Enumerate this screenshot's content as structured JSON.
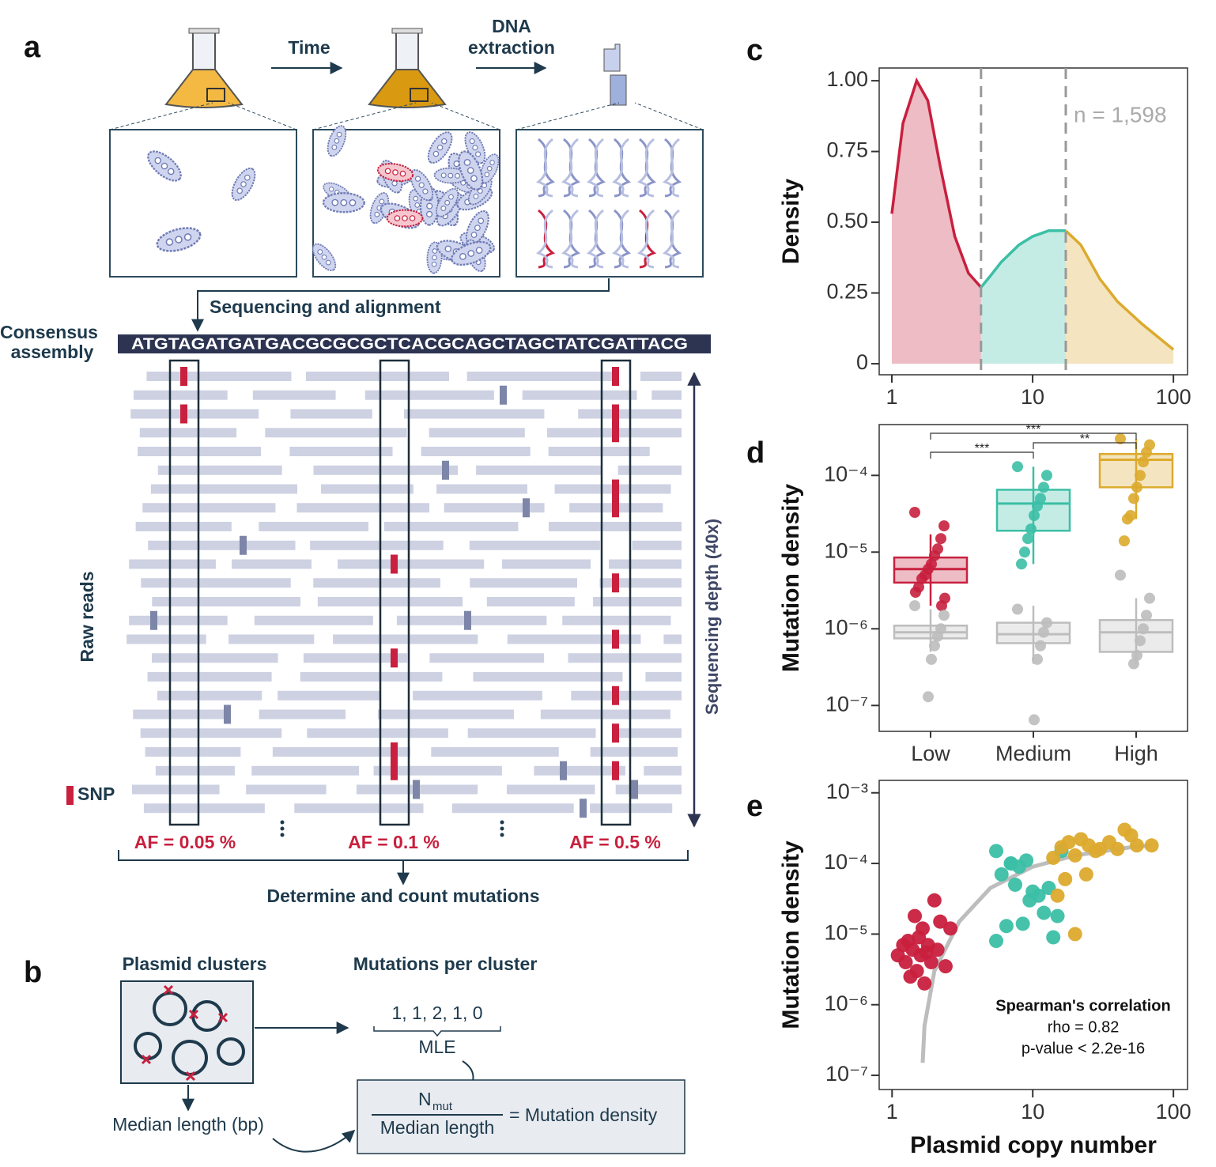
{
  "panel_labels": [
    "a",
    "b",
    "c",
    "d",
    "e"
  ],
  "diagram_a": {
    "step1": "Time",
    "step2": [
      "DNA",
      "extraction"
    ],
    "align": "Sequencing and alignment",
    "consensus_label": [
      "Consensus",
      "assembly"
    ],
    "sequence": "ATGTAGATGATGACGCGCGCTCACGCAGCTAGCTATCGATTACG",
    "raw_reads": "Raw reads",
    "depth": "Sequencing depth (40x)",
    "snp": "SNP",
    "af": [
      "AF = 0.05 %",
      "AF = 0.1 %",
      "AF = 0.5 %"
    ],
    "determine": "Determine and count mutations"
  },
  "diagram_b": {
    "clusters": "Plasmid clusters",
    "per_cluster": "Mutations per cluster",
    "counts": "1, 1, 2, 1, 0",
    "mle": "MLE",
    "numerator": "N",
    "numerator_sub": "mut",
    "denominator": "Median length",
    "result": "= Mutation density",
    "median": "Median length (bp)"
  },
  "chart_data": [
    {
      "type": "density",
      "ylabel": "Density",
      "annotation": "n = 1,598",
      "xscale": "log",
      "xlim": [
        0.813,
        126
      ],
      "ylim": [
        -0.039,
        1.045
      ],
      "xticks": [
        1,
        10,
        100
      ],
      "yticks": [
        0,
        0.25,
        {
          "value": 0.5,
          "label": "0.50"
        },
        0.75,
        {
          "value": 1,
          "label": "1.00"
        }
      ],
      "vlines": [
        4.3,
        17.2
      ],
      "series": [
        {
          "color": "#c8203e",
          "x": [
            1,
            1.2,
            1.5,
            1.8,
            2.2,
            2.8,
            3.5,
            4.3
          ],
          "values": [
            0.53,
            0.85,
            1.0,
            0.93,
            0.7,
            0.45,
            0.32,
            0.27
          ]
        },
        {
          "color": "#3cbfa6",
          "x": [
            4.3,
            5,
            6,
            8,
            10,
            13,
            17.2
          ],
          "values": [
            0.27,
            0.31,
            0.36,
            0.42,
            0.45,
            0.47,
            0.47
          ]
        },
        {
          "color": "#dcaa2e",
          "x": [
            17.2,
            22,
            30,
            40,
            60,
            100
          ],
          "values": [
            0.47,
            0.42,
            0.3,
            0.22,
            0.14,
            0.05
          ]
        }
      ]
    },
    {
      "type": "box",
      "ylabel": "Mutation density",
      "yscale": "log",
      "categories": [
        "Low",
        "Medium",
        "High"
      ],
      "ylim": [
        4.6e-08,
        0.00046
      ],
      "yticks": [
        {
          "value": 1e-07,
          "label": "10⁻⁷"
        },
        {
          "value": 1e-06,
          "label": "10⁻⁶"
        },
        {
          "value": 1e-05,
          "label": "10⁻⁵"
        },
        {
          "value": 0.0001,
          "label": "10⁻⁴"
        }
      ],
      "significance": [
        "***",
        "***",
        "**"
      ],
      "series": [
        {
          "colors": [
            "#c8203e",
            "#3cbfa6",
            "#dcaa2e"
          ],
          "boxes": [
            {
              "min": 2e-06,
              "q1": 4e-06,
              "median": 6e-06,
              "q3": 8.5e-06,
              "max": 1.7e-05,
              "points": [
                3.3e-05,
                2.2e-05,
                1.5e-05,
                1.1e-05,
                9e-06,
                7e-06,
                6e-06,
                5e-06,
                4.5e-06,
                3.5e-06,
                3e-06,
                2.5e-06,
                2e-06
              ]
            },
            {
              "min": 7e-06,
              "q1": 1.9e-05,
              "median": 4.3e-05,
              "q3": 6.5e-05,
              "max": 0.00013,
              "points": [
                0.00013,
                0.0001,
                7e-05,
                5e-05,
                4e-05,
                3e-05,
                2e-05,
                1.5e-05,
                1e-05,
                7e-06
              ]
            },
            {
              "min": 2.7e-05,
              "q1": 7e-05,
              "median": 0.00016,
              "q3": 0.00019,
              "max": 0.0003,
              "points": [
                0.0003,
                0.00025,
                0.0002,
                0.00015,
                0.0001,
                7e-05,
                5e-05,
                3e-05,
                2.7e-05,
                1.4e-05
              ]
            }
          ]
        },
        {
          "colors": [
            "#bdbdbd",
            "#bdbdbd",
            "#bdbdbd"
          ],
          "boxes": [
            {
              "min": 5e-07,
              "q1": 7.5e-07,
              "median": 9e-07,
              "q3": 1.1e-06,
              "max": 1.8e-06,
              "points": [
                2e-06,
                1.5e-06,
                1e-06,
                8e-07,
                6e-07,
                4e-07,
                1.3e-07
              ]
            },
            {
              "min": 3.5e-07,
              "q1": 6.5e-07,
              "median": 8.5e-07,
              "q3": 1.2e-06,
              "max": 2e-06,
              "points": [
                1.8e-06,
                1.2e-06,
                9e-07,
                6e-07,
                4e-07,
                6.5e-08
              ]
            },
            {
              "min": 3.5e-07,
              "q1": 5e-07,
              "median": 9e-07,
              "q3": 1.3e-06,
              "max": 2.5e-06,
              "points": [
                5e-06,
                2.5e-06,
                1.5e-06,
                1e-06,
                7e-07,
                4.5e-07,
                3.5e-07
              ]
            }
          ]
        }
      ]
    },
    {
      "type": "scatter",
      "xlabel": "Plasmid copy number",
      "ylabel": "Mutation density",
      "xscale": "log",
      "yscale": "log",
      "xlim": [
        0.81,
        126
      ],
      "ylim": [
        6.3e-08,
        0.0015
      ],
      "xticks": [
        1,
        10,
        100
      ],
      "yticks": [
        {
          "value": 1e-07,
          "label": "10⁻⁷"
        },
        {
          "value": 1e-06,
          "label": "10⁻⁶"
        },
        {
          "value": 1e-05,
          "label": "10⁻⁵"
        },
        {
          "value": 0.0001,
          "label": "10⁻⁴"
        },
        {
          "value": 0.001,
          "label": "10⁻³"
        }
      ],
      "annotation": [
        "Spearman's correlation",
        "rho = 0.82",
        "p-value < 2.2e-16"
      ],
      "fit": {
        "color": "#bdbdbd",
        "x": [
          1.65,
          1.7,
          2,
          3,
          5,
          10,
          20,
          50,
          70
        ],
        "values": [
          1.5e-07,
          5e-07,
          3e-06,
          1.5e-05,
          4.5e-05,
          9e-05,
          0.00013,
          0.00017,
          0.00018
        ]
      },
      "series": [
        {
          "color": "#c8203e",
          "x": [
            1.1,
            1.2,
            1.25,
            1.3,
            1.4,
            1.45,
            1.5,
            1.55,
            1.6,
            1.65,
            1.7,
            1.8,
            1.9,
            2.0,
            2.1,
            2.2,
            2.4,
            2.6,
            1.35,
            1.75
          ],
          "values": [
            5e-06,
            7e-06,
            4e-06,
            8e-06,
            6e-06,
            1.8e-05,
            3e-06,
            9e-06,
            5e-06,
            1.2e-05,
            2e-06,
            7e-06,
            4e-06,
            3e-05,
            6e-06,
            1.5e-05,
            3.5e-06,
            1.2e-05,
            2.5e-06,
            5.5e-06
          ]
        },
        {
          "color": "#3cbfa6",
          "x": [
            5.5,
            6,
            6.5,
            7,
            7.5,
            8,
            8.5,
            9,
            9.5,
            10,
            11,
            12,
            13,
            14,
            15,
            16,
            5.5,
            7
          ],
          "values": [
            0.00015,
            7e-05,
            1.3e-05,
            0.0001,
            5e-05,
            9e-05,
            1.4e-05,
            0.00011,
            3e-05,
            4e-05,
            3.5e-05,
            2e-05,
            4.5e-05,
            9e-06,
            1.8e-05,
            0.00015,
            8e-06,
            0.0001
          ]
        },
        {
          "color": "#dcaa2e",
          "x": [
            14,
            16,
            18,
            20,
            22,
            25,
            28,
            30,
            35,
            40,
            45,
            50,
            55,
            70,
            17,
            20,
            24,
            15
          ],
          "values": [
            0.00012,
            0.00017,
            0.0002,
            0.00013,
            0.00022,
            0.00018,
            0.00015,
            0.00016,
            0.0002,
            0.00016,
            0.0003,
            0.00025,
            0.00018,
            0.00018,
            6e-05,
            1e-05,
            7e-05,
            3.5e-05
          ]
        }
      ]
    }
  ]
}
